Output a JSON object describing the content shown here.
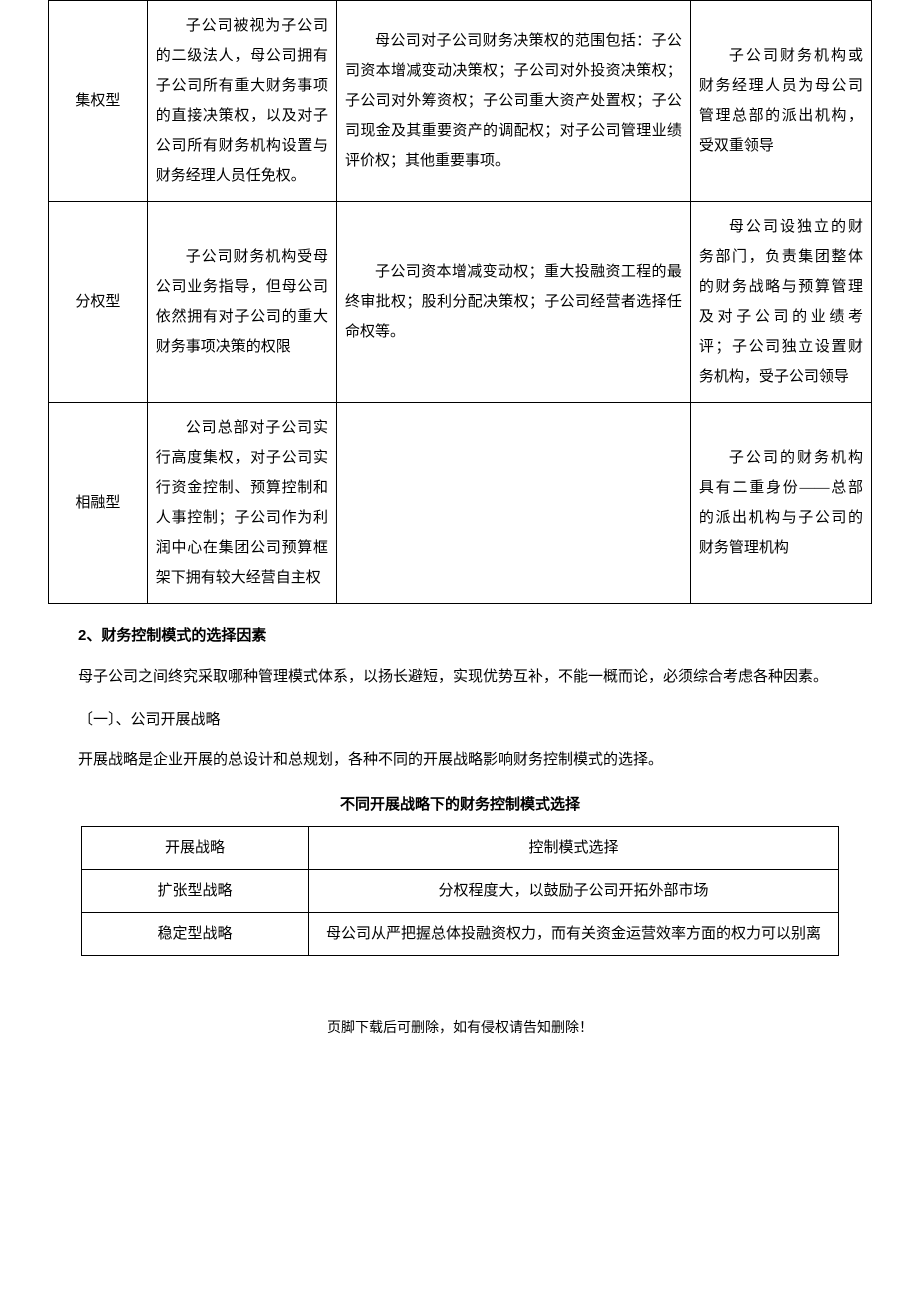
{
  "main_table": {
    "rows": [
      {
        "type": "集权型",
        "char": "子公司被视为子公司的二级法人，母公司拥有子公司所有重大财务事项的直接决策权，以及对子公司所有财务机构设置与财务经理人员任免权。",
        "scope": "母公司对子公司财务决策权的范围包括：子公司资本增减变动决策权；子公司对外投资决策权；子公司对外筹资权；子公司重大资产处置权；子公司现金及其重要资产的调配权；对子公司管理业绩评价权；其他重要事项。",
        "org": "子公司财务机构或财务经理人员为母公司管理总部的派出机构，受双重领导"
      },
      {
        "type": "分权型",
        "char": "子公司财务机构受母公司业务指导，但母公司依然拥有对子公司的重大财务事项决策的权限",
        "scope": "子公司资本增减变动权；重大投融资工程的最终审批权；股利分配决策权；子公司经营者选择任命权等。",
        "org": "母公司设独立的财务部门，负责集团整体的财务战略与预算管理及对子公司的业绩考评；子公司独立设置财务机构，受子公司领导"
      },
      {
        "type": "相融型",
        "char": "公司总部对子公司实行高度集权，对子公司实行资金控制、预算控制和人事控制；子公司作为利润中心在集团公司预算框架下拥有较大经营自主权",
        "scope": "",
        "org": "子公司的财务机构具有二重身份——总部的派出机构与子公司的财务管理机构"
      }
    ]
  },
  "section2": {
    "heading": "2、财务控制模式的选择因素",
    "para1": "母子公司之间终究采取哪种管理模式体系，以扬长避短，实现优势互补，不能一概而论，必须综合考虑各种因素。",
    "sub1": "〔一〕、公司开展战略",
    "para2": "开展战略是企业开展的总设计和总规划，各种不同的开展战略影响财务控制模式的选择。",
    "table_title": "不同开展战略下的财务控制模式选择",
    "strategy_table": {
      "header": {
        "c1": "开展战略",
        "c2": "控制模式选择"
      },
      "rows": [
        {
          "c1": "扩张型战略",
          "c2": "分权程度大，以鼓励子公司开拓外部市场"
        },
        {
          "c1": "稳定型战略",
          "c2": "母公司从严把握总体投融资权力，而有关资金运营效率方面的权力可以别离"
        }
      ]
    }
  },
  "footer": "页脚下载后可删除，如有侵权请告知删除！"
}
